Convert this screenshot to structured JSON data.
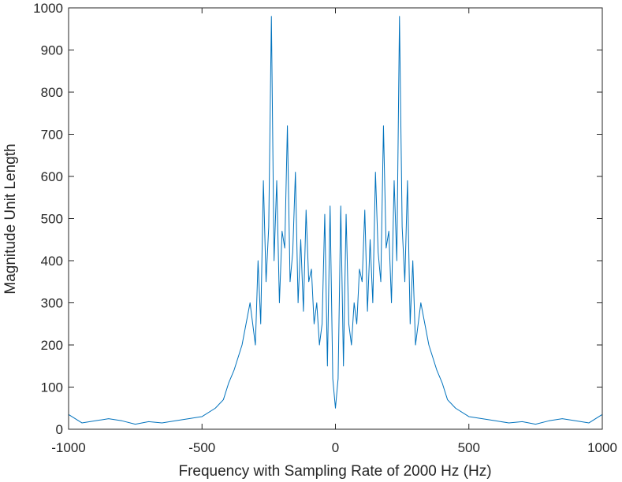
{
  "chart_data": {
    "type": "line",
    "title": "",
    "xlabel": "Frequency with Sampling Rate of 2000 Hz (Hz)",
    "ylabel": "Magnitude Unit Length",
    "xlim": [
      -1000,
      1000
    ],
    "ylim": [
      0,
      1000
    ],
    "xticks": [
      -1000,
      -500,
      0,
      500,
      1000
    ],
    "xtick_labels": [
      "-1000",
      "-500",
      "0",
      "500",
      "1000"
    ],
    "yticks": [
      0,
      100,
      200,
      300,
      400,
      500,
      600,
      700,
      800,
      900,
      1000
    ],
    "ytick_labels": [
      "0",
      "100",
      "200",
      "300",
      "400",
      "500",
      "600",
      "700",
      "800",
      "900",
      "1000"
    ],
    "grid": false,
    "box": true,
    "series_color": "#0072BD",
    "series": [
      {
        "x": [
          -1000,
          -950,
          -900,
          -850,
          -800,
          -750,
          -700,
          -650,
          -600,
          -550,
          -500,
          -450,
          -420,
          -400,
          -380,
          -350,
          -320,
          -300,
          -290,
          -280,
          -270,
          -260,
          -250,
          -240,
          -230,
          -220,
          -210,
          -200,
          -190,
          -180,
          -170,
          -160,
          -150,
          -140,
          -130,
          -120,
          -110,
          -100,
          -90,
          -80,
          -70,
          -60,
          -50,
          -40,
          -30,
          -20,
          -10,
          0,
          10,
          20,
          30,
          40,
          50,
          60,
          70,
          80,
          90,
          100,
          110,
          120,
          130,
          140,
          150,
          160,
          170,
          180,
          190,
          200,
          210,
          220,
          230,
          240,
          250,
          260,
          270,
          280,
          290,
          300,
          320,
          350,
          380,
          400,
          420,
          450,
          500,
          550,
          600,
          650,
          700,
          750,
          800,
          850,
          900,
          950,
          1000
        ],
        "y": [
          35,
          15,
          20,
          25,
          20,
          12,
          18,
          15,
          20,
          25,
          30,
          50,
          70,
          110,
          140,
          200,
          300,
          200,
          400,
          250,
          590,
          350,
          480,
          980,
          400,
          590,
          300,
          470,
          430,
          720,
          350,
          420,
          610,
          300,
          450,
          280,
          520,
          350,
          380,
          250,
          300,
          200,
          250,
          510,
          150,
          530,
          120,
          50,
          120,
          530,
          150,
          510,
          250,
          200,
          300,
          250,
          380,
          350,
          520,
          280,
          450,
          300,
          610,
          420,
          350,
          720,
          430,
          470,
          300,
          590,
          400,
          980,
          480,
          350,
          590,
          250,
          400,
          200,
          300,
          200,
          140,
          110,
          70,
          50,
          30,
          25,
          20,
          15,
          18,
          12,
          20,
          25,
          20,
          15,
          35
        ]
      }
    ]
  }
}
